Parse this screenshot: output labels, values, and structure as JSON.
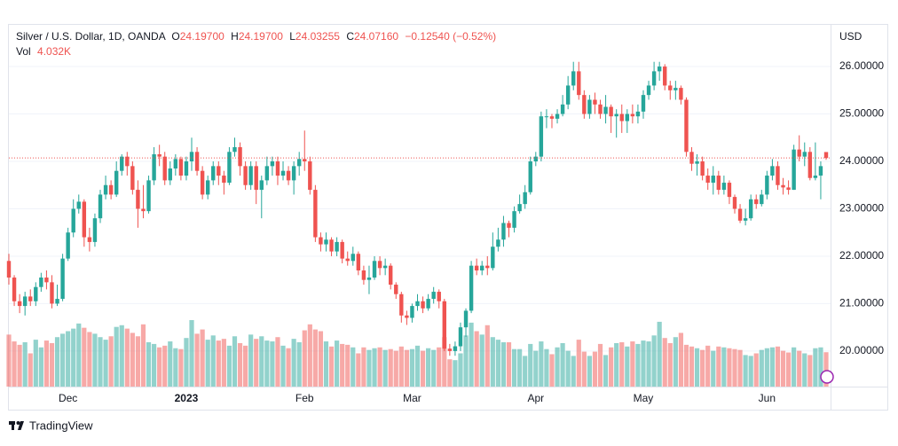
{
  "chart_data": {
    "type": "candlestick",
    "legend": {
      "symbol": "Silver / U.S. Dollar, 1D, OANDA",
      "open_label": "O",
      "open": "24.19700",
      "high_label": "H",
      "high": "24.19700",
      "low_label": "L",
      "low": "24.03255",
      "close_label": "C",
      "close": "24.07160",
      "change": "−0.12540 (−0.52%)",
      "volume_label": "Vol",
      "volume": "4.032K"
    },
    "currency": "USD",
    "branding": "TradingView",
    "up_color": "#26a69a",
    "down_color": "#ef5350",
    "ylim": [
      19.25,
      26.88
    ],
    "yticks": [
      {
        "value": 20,
        "label": "20.00000"
      },
      {
        "value": 21,
        "label": "21.00000"
      },
      {
        "value": 22,
        "label": "22.00000"
      },
      {
        "value": 23,
        "label": "23.00000"
      },
      {
        "value": 24,
        "label": "24.00000"
      },
      {
        "value": 25,
        "label": "25.00000"
      },
      {
        "value": 26,
        "label": "26.00000"
      }
    ],
    "grid": true,
    "categories": [
      null,
      null,
      null,
      null,
      null,
      null,
      null,
      null,
      null,
      null,
      null,
      "Dec",
      null,
      null,
      null,
      null,
      null,
      null,
      null,
      null,
      null,
      null,
      null,
      null,
      null,
      null,
      null,
      null,
      null,
      null,
      null,
      null,
      null,
      "2023",
      null,
      null,
      null,
      null,
      null,
      null,
      null,
      null,
      null,
      null,
      null,
      null,
      null,
      null,
      null,
      null,
      null,
      null,
      null,
      null,
      null,
      "Feb",
      null,
      null,
      null,
      null,
      null,
      null,
      null,
      null,
      null,
      null,
      null,
      null,
      null,
      null,
      null,
      null,
      null,
      null,
      null,
      "Mar",
      null,
      null,
      null,
      null,
      null,
      null,
      null,
      null,
      null,
      null,
      null,
      null,
      null,
      null,
      null,
      null,
      null,
      null,
      null,
      null,
      null,
      null,
      "Apr",
      null,
      null,
      null,
      null,
      null,
      null,
      null,
      null,
      null,
      null,
      null,
      null,
      null,
      null,
      null,
      null,
      null,
      null,
      null,
      "May",
      null,
      null,
      null,
      null,
      null,
      null,
      null,
      null,
      null,
      null,
      null,
      null,
      null,
      null,
      null,
      null,
      null,
      null,
      null,
      null,
      null,
      null,
      "Jun",
      null,
      null,
      null,
      null,
      null,
      null,
      null,
      null,
      null,
      null,
      null
    ],
    "ohlc": [
      [
        21.9,
        22.05,
        21.4,
        21.55
      ],
      [
        21.55,
        21.6,
        20.95,
        21.05
      ],
      [
        21.05,
        21.2,
        20.8,
        20.95
      ],
      [
        20.95,
        21.25,
        20.75,
        21.15
      ],
      [
        21.15,
        21.3,
        20.95,
        21.05
      ],
      [
        21.05,
        21.45,
        20.95,
        21.35
      ],
      [
        21.35,
        21.65,
        21.25,
        21.55
      ],
      [
        21.55,
        21.7,
        21.3,
        21.45
      ],
      [
        21.45,
        21.6,
        20.9,
        21.0
      ],
      [
        21.0,
        21.4,
        20.95,
        21.1
      ],
      [
        21.1,
        22.05,
        21.05,
        21.95
      ],
      [
        21.95,
        22.6,
        21.9,
        22.5
      ],
      [
        22.5,
        23.2,
        22.4,
        23.0
      ],
      [
        23.0,
        23.3,
        22.9,
        23.15
      ],
      [
        23.15,
        23.2,
        22.2,
        22.4
      ],
      [
        22.4,
        22.6,
        22.1,
        22.3
      ],
      [
        22.3,
        22.9,
        22.2,
        22.8
      ],
      [
        22.8,
        23.4,
        22.7,
        23.3
      ],
      [
        23.3,
        23.7,
        23.2,
        23.5
      ],
      [
        23.5,
        23.6,
        23.2,
        23.3
      ],
      [
        23.3,
        24.0,
        23.25,
        23.8
      ],
      [
        23.8,
        24.15,
        23.7,
        24.1
      ],
      [
        24.1,
        24.2,
        23.7,
        23.9
      ],
      [
        23.9,
        24.0,
        23.3,
        23.4
      ],
      [
        23.4,
        23.6,
        22.6,
        23.0
      ],
      [
        23.0,
        23.5,
        22.8,
        22.95
      ],
      [
        22.95,
        23.7,
        22.9,
        23.6
      ],
      [
        23.6,
        24.3,
        23.5,
        24.15
      ],
      [
        24.15,
        24.35,
        23.9,
        24.1
      ],
      [
        24.1,
        24.2,
        23.5,
        23.6
      ],
      [
        23.6,
        24.0,
        23.5,
        23.85
      ],
      [
        23.85,
        24.15,
        23.7,
        24.05
      ],
      [
        24.05,
        24.1,
        23.6,
        23.7
      ],
      [
        23.7,
        24.1,
        23.6,
        24.0
      ],
      [
        24.0,
        24.5,
        23.8,
        24.2
      ],
      [
        24.2,
        24.3,
        23.7,
        23.8
      ],
      [
        23.8,
        23.9,
        23.2,
        23.3
      ],
      [
        23.3,
        23.7,
        23.2,
        23.6
      ],
      [
        23.6,
        24.0,
        23.5,
        23.9
      ],
      [
        23.9,
        24.0,
        23.5,
        23.7
      ],
      [
        23.7,
        23.8,
        23.3,
        23.55
      ],
      [
        23.55,
        24.3,
        23.5,
        24.2
      ],
      [
        24.2,
        24.5,
        24.1,
        24.3
      ],
      [
        24.3,
        24.4,
        23.7,
        23.9
      ],
      [
        23.9,
        24.0,
        23.4,
        23.5
      ],
      [
        23.5,
        24.0,
        23.4,
        23.9
      ],
      [
        23.9,
        24.0,
        23.1,
        23.4
      ],
      [
        23.4,
        23.7,
        22.8,
        23.6
      ],
      [
        23.6,
        24.1,
        23.5,
        23.9
      ],
      [
        23.9,
        24.1,
        23.7,
        24.0
      ],
      [
        24.0,
        24.1,
        23.5,
        23.7
      ],
      [
        23.7,
        24.0,
        23.6,
        23.8
      ],
      [
        23.8,
        23.9,
        23.5,
        23.6
      ],
      [
        23.6,
        24.0,
        23.3,
        23.9
      ],
      [
        23.9,
        24.2,
        23.7,
        24.05
      ],
      [
        24.05,
        24.65,
        23.8,
        24.0
      ],
      [
        24.0,
        24.1,
        23.3,
        23.4
      ],
      [
        23.4,
        23.5,
        22.3,
        22.4
      ],
      [
        22.4,
        22.5,
        22.1,
        22.25
      ],
      [
        22.25,
        22.5,
        22.1,
        22.35
      ],
      [
        22.35,
        22.4,
        22.0,
        22.1
      ],
      [
        22.1,
        22.4,
        22.0,
        22.3
      ],
      [
        22.3,
        22.35,
        21.85,
        21.95
      ],
      [
        21.95,
        22.1,
        21.8,
        21.9
      ],
      [
        21.9,
        22.2,
        21.8,
        22.05
      ],
      [
        22.05,
        22.1,
        21.6,
        21.7
      ],
      [
        21.7,
        21.8,
        21.4,
        21.5
      ],
      [
        21.5,
        21.8,
        21.2,
        21.55
      ],
      [
        21.55,
        22.0,
        21.5,
        21.9
      ],
      [
        21.9,
        22.0,
        21.6,
        21.75
      ],
      [
        21.75,
        21.95,
        21.6,
        21.8
      ],
      [
        21.8,
        21.85,
        21.3,
        21.4
      ],
      [
        21.4,
        21.45,
        21.1,
        21.2
      ],
      [
        21.2,
        21.25,
        20.6,
        20.75
      ],
      [
        20.75,
        20.85,
        20.55,
        20.7
      ],
      [
        20.7,
        21.0,
        20.6,
        20.95
      ],
      [
        20.95,
        21.2,
        20.85,
        21.05
      ],
      [
        21.05,
        21.15,
        20.8,
        20.9
      ],
      [
        20.9,
        21.2,
        20.85,
        21.1
      ],
      [
        21.1,
        21.35,
        21.0,
        21.25
      ],
      [
        21.25,
        21.3,
        20.9,
        21.05
      ],
      [
        21.05,
        21.1,
        20.0,
        20.05
      ],
      [
        20.05,
        20.15,
        19.9,
        20.0
      ],
      [
        20.0,
        20.2,
        19.9,
        20.1
      ],
      [
        20.1,
        20.6,
        20.0,
        20.5
      ],
      [
        20.5,
        20.9,
        20.3,
        20.85
      ],
      [
        20.85,
        21.9,
        20.8,
        21.8
      ],
      [
        21.8,
        21.95,
        21.6,
        21.7
      ],
      [
        21.7,
        21.9,
        21.6,
        21.8
      ],
      [
        21.8,
        22.0,
        21.6,
        21.75
      ],
      [
        21.75,
        22.5,
        21.7,
        22.2
      ],
      [
        22.2,
        22.6,
        22.1,
        22.35
      ],
      [
        22.35,
        22.85,
        22.2,
        22.7
      ],
      [
        22.7,
        22.75,
        22.4,
        22.6
      ],
      [
        22.6,
        23.05,
        22.5,
        22.95
      ],
      [
        22.95,
        23.3,
        22.9,
        23.1
      ],
      [
        23.1,
        23.5,
        23.0,
        23.35
      ],
      [
        23.35,
        24.1,
        23.3,
        24.0
      ],
      [
        24.0,
        24.2,
        23.9,
        24.1
      ],
      [
        24.1,
        25.05,
        24.0,
        24.95
      ],
      [
        24.95,
        25.1,
        24.7,
        24.95
      ],
      [
        24.95,
        25.0,
        24.7,
        24.9
      ],
      [
        24.9,
        25.1,
        24.8,
        25.0
      ],
      [
        25.0,
        25.4,
        24.95,
        25.2
      ],
      [
        25.2,
        25.8,
        25.1,
        25.6
      ],
      [
        25.6,
        26.1,
        25.5,
        25.9
      ],
      [
        25.9,
        26.1,
        25.3,
        25.4
      ],
      [
        25.4,
        25.5,
        24.9,
        25.0
      ],
      [
        25.0,
        25.4,
        24.9,
        25.3
      ],
      [
        25.3,
        25.45,
        25.0,
        25.2
      ],
      [
        25.2,
        25.3,
        24.9,
        25.0
      ],
      [
        25.0,
        25.4,
        24.8,
        25.15
      ],
      [
        25.15,
        25.2,
        24.6,
        24.95
      ],
      [
        24.95,
        25.1,
        24.5,
        25.0
      ],
      [
        25.0,
        25.2,
        24.6,
        24.85
      ],
      [
        24.85,
        25.1,
        24.6,
        25.0
      ],
      [
        25.0,
        25.2,
        24.8,
        24.95
      ],
      [
        24.95,
        25.2,
        24.8,
        25.05
      ],
      [
        25.05,
        25.5,
        24.9,
        25.4
      ],
      [
        25.4,
        25.7,
        25.3,
        25.6
      ],
      [
        25.6,
        26.1,
        25.5,
        25.9
      ],
      [
        25.9,
        26.1,
        25.7,
        26.0
      ],
      [
        26.0,
        26.05,
        25.5,
        25.6
      ],
      [
        25.6,
        25.7,
        25.3,
        25.5
      ],
      [
        25.5,
        25.7,
        25.3,
        25.55
      ],
      [
        25.55,
        25.6,
        25.2,
        25.3
      ],
      [
        25.3,
        25.35,
        24.1,
        24.2
      ],
      [
        24.2,
        24.3,
        23.8,
        23.95
      ],
      [
        23.95,
        24.15,
        23.7,
        24.0
      ],
      [
        24.0,
        24.1,
        23.6,
        23.7
      ],
      [
        23.7,
        23.85,
        23.4,
        23.55
      ],
      [
        23.55,
        23.9,
        23.3,
        23.7
      ],
      [
        23.7,
        23.8,
        23.3,
        23.4
      ],
      [
        23.4,
        23.7,
        23.3,
        23.55
      ],
      [
        23.55,
        23.6,
        23.1,
        23.25
      ],
      [
        23.25,
        23.3,
        22.9,
        23.0
      ],
      [
        23.0,
        23.1,
        22.7,
        22.75
      ],
      [
        22.75,
        23.0,
        22.65,
        22.8
      ],
      [
        22.8,
        23.3,
        22.75,
        23.2
      ],
      [
        23.2,
        23.3,
        23.0,
        23.1
      ],
      [
        23.1,
        23.4,
        23.05,
        23.3
      ],
      [
        23.3,
        23.8,
        23.2,
        23.7
      ],
      [
        23.7,
        24.05,
        23.6,
        23.9
      ],
      [
        23.9,
        24.0,
        23.4,
        23.5
      ],
      [
        23.5,
        23.65,
        23.3,
        23.45
      ],
      [
        23.45,
        23.6,
        23.3,
        23.4
      ],
      [
        23.4,
        24.35,
        23.4,
        24.25
      ],
      [
        24.25,
        24.55,
        24.0,
        24.1
      ],
      [
        24.1,
        24.4,
        23.9,
        24.2
      ],
      [
        24.2,
        24.3,
        23.6,
        23.65
      ],
      [
        23.65,
        24.4,
        23.6,
        23.7
      ],
      [
        23.7,
        24.0,
        23.2,
        23.9
      ],
      [
        24.197,
        24.197,
        24.03255,
        24.0716
      ]
    ],
    "volume": [
      6100,
      5300,
      4900,
      5200,
      3900,
      5500,
      4600,
      5400,
      5100,
      5800,
      6200,
      6500,
      6800,
      7400,
      6900,
      6400,
      6200,
      5800,
      5500,
      5900,
      7000,
      7200,
      6800,
      6300,
      5900,
      7300,
      5200,
      5000,
      4600,
      4800,
      5300,
      4500,
      4400,
      5700,
      7800,
      6200,
      6700,
      5500,
      6000,
      5400,
      5600,
      4800,
      5900,
      5100,
      4800,
      6100,
      5600,
      5900,
      5400,
      5300,
      5800,
      4800,
      4500,
      5600,
      5200,
      6600,
      7300,
      6700,
      6500,
      5300,
      4700,
      5400,
      5000,
      4900,
      4600,
      3900,
      4600,
      4300,
      4500,
      4600,
      4300,
      4400,
      4200,
      4700,
      4300,
      4400,
      4800,
      4200,
      4500,
      4300,
      4600,
      5800,
      3200,
      3100,
      3900,
      6000,
      7500,
      6500,
      6100,
      7200,
      5800,
      5500,
      5200,
      5200,
      4400,
      4400,
      3600,
      5000,
      4200,
      5300,
      4400,
      3800,
      4600,
      5100,
      4200,
      3600,
      5500,
      4100,
      3600,
      4100,
      5000,
      3700,
      4600,
      5100,
      5200,
      4700,
      5300,
      5000,
      5400,
      5300,
      6000,
      7600,
      5700,
      5100,
      5800,
      6300,
      4900,
      4700,
      4500,
      4300,
      4800,
      4200,
      4700,
      4600,
      4500,
      4400,
      4300,
      3700,
      3600,
      3900,
      4300,
      4500,
      4600,
      4700,
      4200,
      4000,
      4600,
      4200,
      3900,
      3700,
      4500,
      4600,
      4032
    ]
  }
}
